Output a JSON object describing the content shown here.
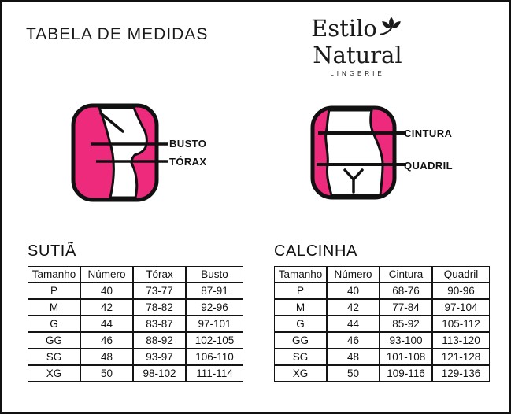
{
  "page": {
    "title": "TABELA DE MEDIDAS"
  },
  "logo": {
    "line1": "Estilo",
    "line2": "Natural",
    "line3": "LINGERIE",
    "icon": "lotus-leaves-icon"
  },
  "colors": {
    "pink": "#ED2A7B",
    "ink": "#1a1a1a"
  },
  "figures": {
    "bra": {
      "labels": {
        "bust": "BUSTO",
        "thorax": "TÓRAX"
      }
    },
    "panty": {
      "labels": {
        "waist": "CINTURA",
        "hip": "QUADRIL"
      }
    }
  },
  "tables": {
    "bra": {
      "heading": "SUTIÃ",
      "columns": [
        "Tamanho",
        "Número",
        "Tórax",
        "Busto"
      ],
      "rows": [
        [
          "P",
          "40",
          "73-77",
          "87-91"
        ],
        [
          "M",
          "42",
          "78-82",
          "92-96"
        ],
        [
          "G",
          "44",
          "83-87",
          "97-101"
        ],
        [
          "GG",
          "46",
          "88-92",
          "102-105"
        ],
        [
          "SG",
          "48",
          "93-97",
          "106-110"
        ],
        [
          "XG",
          "50",
          "98-102",
          "111-114"
        ]
      ]
    },
    "panty": {
      "heading": "CALCINHA",
      "columns": [
        "Tamanho",
        "Número",
        "Cintura",
        "Quadril"
      ],
      "rows": [
        [
          "P",
          "40",
          "68-76",
          "90-96"
        ],
        [
          "M",
          "42",
          "77-84",
          "97-104"
        ],
        [
          "G",
          "44",
          "85-92",
          "105-112"
        ],
        [
          "GG",
          "46",
          "93-100",
          "113-120"
        ],
        [
          "SG",
          "48",
          "101-108",
          "121-128"
        ],
        [
          "XG",
          "50",
          "109-116",
          "129-136"
        ]
      ]
    }
  }
}
